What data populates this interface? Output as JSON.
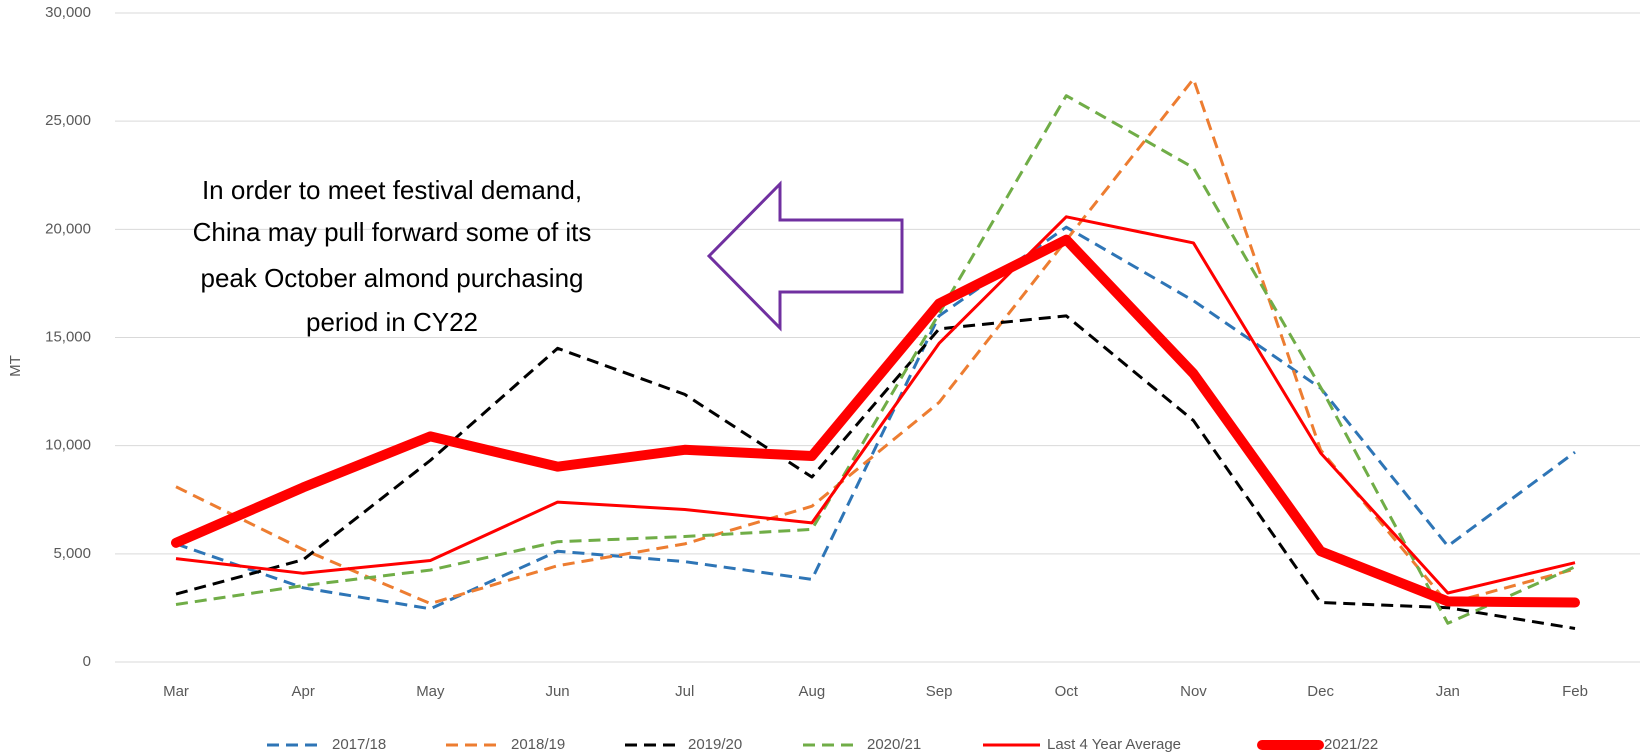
{
  "chart_data": {
    "type": "line",
    "y_label": "MT",
    "annotation": [
      "In order to meet festival demand,",
      "China may pull forward some of its",
      "peak October almond purchasing",
      "period in CY22"
    ],
    "categories": [
      "Mar",
      "Apr",
      "May",
      "Jun",
      "Jul",
      "Aug",
      "Sep",
      "Oct",
      "Nov",
      "Dec",
      "Jan",
      "Feb"
    ],
    "ylim": [
      0,
      30000
    ],
    "yticks": [
      0,
      {
        "value": 5000,
        "label": "5,000"
      },
      {
        "value": 10000,
        "label": "10,000"
      },
      {
        "value": 15000,
        "label": "15,000"
      },
      {
        "value": 20000,
        "label": "20,000"
      },
      {
        "value": 25000,
        "label": "25,000"
      },
      {
        "value": 30000,
        "label": "30,000"
      }
    ],
    "grid": true,
    "legend": "bottom",
    "series": [
      {
        "name": "2017/18",
        "color": "#2e75b6",
        "style": "dashed",
        "width": 3,
        "values": [
          5460,
          3430,
          2460,
          5120,
          4640,
          3820,
          16000,
          20100,
          16700,
          12660,
          5360,
          9700
        ]
      },
      {
        "name": "2018/19",
        "color": "#ed7d31",
        "style": "dashed",
        "width": 3,
        "values": [
          8100,
          5200,
          2700,
          4450,
          5460,
          7200,
          12000,
          19500,
          26950,
          9800,
          2700,
          4300
        ]
      },
      {
        "name": "2019/20",
        "color": "#000000",
        "style": "dashed",
        "width": 3,
        "values": [
          3140,
          4730,
          9320,
          14500,
          12370,
          8550,
          15400,
          16000,
          11160,
          2750,
          2510,
          1550
        ]
      },
      {
        "name": "2020/21",
        "color": "#70ad47",
        "style": "dashed",
        "width": 3,
        "values": [
          2660,
          3530,
          4250,
          5560,
          5800,
          6130,
          16100,
          26180,
          22850,
          12700,
          1790,
          4400
        ]
      },
      {
        "name": "Last 4 Year Average",
        "color": "#ff0000",
        "style": "solid",
        "width": 3,
        "values": [
          4780,
          4100,
          4690,
          7390,
          7050,
          6430,
          14730,
          20580,
          19370,
          9660,
          3190,
          4590
        ]
      },
      {
        "name": "2021/22",
        "color": "#ff0000",
        "style": "solid",
        "width": 10,
        "values": [
          5510,
          8070,
          10430,
          9030,
          9810,
          9520,
          16570,
          19520,
          13330,
          5120,
          2800,
          2750
        ]
      }
    ]
  }
}
